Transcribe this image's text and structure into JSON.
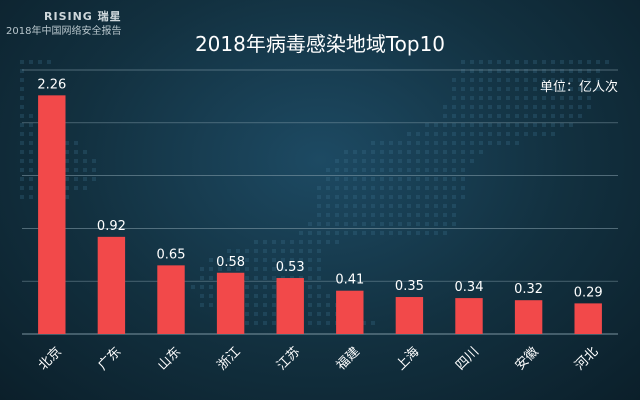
{
  "header": {
    "brand": "RISING 瑞星",
    "report": "2018年中国网络安全报告"
  },
  "unit_label": "单位：亿人次",
  "colors": {
    "bar": "#f2494a",
    "grid": "#8aa3af",
    "text": "#ffffff"
  },
  "chart_data": {
    "type": "bar",
    "title": "2018年病毒感染地域Top10",
    "categories": [
      "北京",
      "广东",
      "山东",
      "浙江",
      "江苏",
      "福建",
      "上海",
      "四川",
      "安徽",
      "河北"
    ],
    "values": [
      2.26,
      0.92,
      0.65,
      0.58,
      0.53,
      0.41,
      0.35,
      0.34,
      0.32,
      0.29
    ],
    "xlabel": "",
    "ylabel": "",
    "ylim": [
      0,
      2.5
    ],
    "grid": true,
    "legend": "none"
  }
}
